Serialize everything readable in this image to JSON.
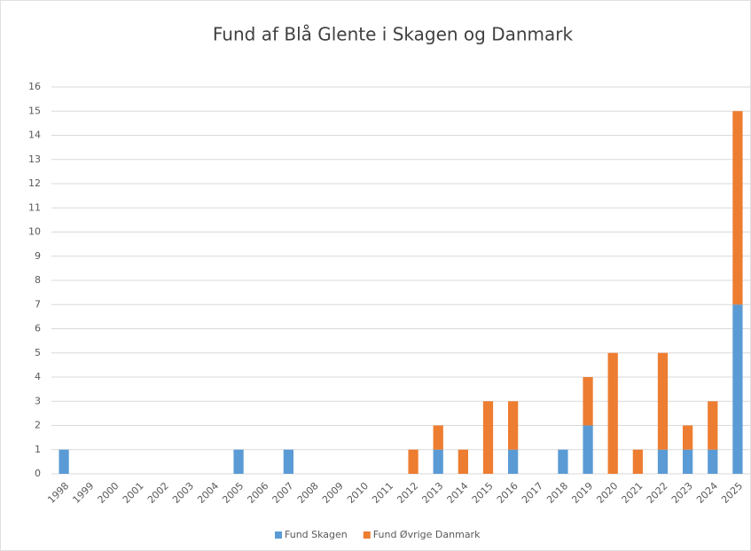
{
  "chart_data": {
    "type": "stacked_bar",
    "title": "Fund af Blå Glente i Skagen og Danmark",
    "categories": [
      "1998",
      "1999",
      "2000",
      "2001",
      "2002",
      "2003",
      "2004",
      "2005",
      "2006",
      "2007",
      "2008",
      "2009",
      "2010",
      "2011",
      "2012",
      "2013",
      "2014",
      "2015",
      "2016",
      "2017",
      "2018",
      "2019",
      "2020",
      "2021",
      "2022",
      "2023",
      "2024",
      "2025"
    ],
    "series": [
      {
        "name": "Fund Skagen",
        "color": "#5b9bd5",
        "values": [
          1,
          0,
          0,
          0,
          0,
          0,
          0,
          1,
          0,
          1,
          0,
          0,
          0,
          0,
          0,
          1,
          0,
          0,
          1,
          0,
          1,
          2,
          0,
          0,
          1,
          1,
          1,
          7
        ]
      },
      {
        "name": "Fund Øvrige Danmark",
        "color": "#ed7d31",
        "values": [
          0,
          0,
          0,
          0,
          0,
          0,
          0,
          0,
          0,
          0,
          0,
          0,
          0,
          0,
          1,
          1,
          1,
          3,
          2,
          0,
          0,
          2,
          5,
          1,
          4,
          1,
          2,
          8
        ]
      }
    ],
    "ylim": [
      0,
      16
    ],
    "yticks": [
      0,
      1,
      2,
      3,
      4,
      5,
      6,
      7,
      8,
      9,
      10,
      11,
      12,
      13,
      14,
      15,
      16
    ],
    "grid": true,
    "legend": "bottom"
  }
}
